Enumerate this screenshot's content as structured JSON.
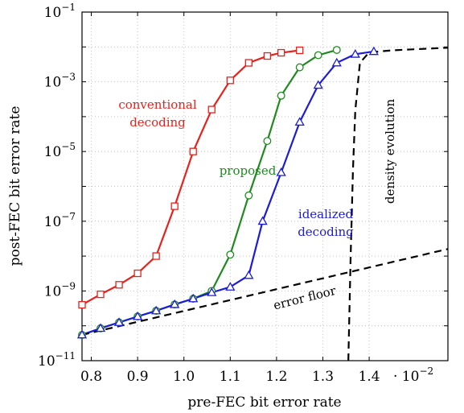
{
  "chart_data": {
    "type": "line",
    "xlabel": "pre-FEC bit error rate",
    "ylabel": "post-FEC bit error rate",
    "x_multiplier_label": "· 10",
    "x_multiplier_exp": "−2",
    "xlim": [
      0.78,
      1.57
    ],
    "ylim": [
      1e-11,
      0.1
    ],
    "yscale": "log",
    "grid": true,
    "x_ticks": [
      "0.8",
      "0.9",
      "1.0",
      "1.1",
      "1.2",
      "1.3",
      "1.4"
    ],
    "x_tick_values": [
      0.8,
      0.9,
      1.0,
      1.1,
      1.2,
      1.3,
      1.4
    ],
    "y_ticks": [
      {
        "value": 1e-11,
        "base": "10",
        "exp": "−11"
      },
      {
        "value": 1e-09,
        "base": "10",
        "exp": "−9"
      },
      {
        "value": 1e-07,
        "base": "10",
        "exp": "−7"
      },
      {
        "value": 1e-05,
        "base": "10",
        "exp": "−5"
      },
      {
        "value": 0.001,
        "base": "10",
        "exp": "−3"
      },
      {
        "value": 0.1,
        "base": "10",
        "exp": "−1"
      }
    ],
    "series": [
      {
        "color": "#e8211c",
        "marker": "square",
        "x": [
          0.78,
          0.82,
          0.86,
          0.9,
          0.94,
          0.98,
          1.02,
          1.06,
          1.1,
          1.14,
          1.18,
          1.21,
          1.25
        ],
        "y": [
          4e-10,
          8e-10,
          1.5e-09,
          3.2e-09,
          1e-08,
          2.7e-07,
          1e-05,
          0.00016,
          0.0011,
          0.0035,
          0.0055,
          0.0068,
          0.008
        ]
      },
      {
        "color": "#1f8a1f",
        "marker": "circle",
        "x": [
          0.78,
          0.82,
          0.86,
          0.9,
          0.94,
          0.98,
          1.02,
          1.06,
          1.1,
          1.14,
          1.18,
          1.21,
          1.25,
          1.29,
          1.33
        ],
        "y": [
          5.5e-11,
          8.5e-11,
          1.25e-10,
          1.85e-10,
          2.7e-10,
          4.1e-10,
          6e-10,
          1e-09,
          1.1e-08,
          5.5e-07,
          2e-05,
          0.0004,
          0.0026,
          0.0058,
          0.0082
        ]
      },
      {
        "color": "#1c1cd8",
        "marker": "triangle",
        "x": [
          0.78,
          0.82,
          0.86,
          0.9,
          0.94,
          0.98,
          1.02,
          1.06,
          1.1,
          1.14,
          1.17,
          1.21,
          1.25,
          1.29,
          1.33,
          1.37,
          1.41
        ],
        "y": [
          5.5e-11,
          8.5e-11,
          1.25e-10,
          1.85e-10,
          2.7e-10,
          4.1e-10,
          6e-10,
          9e-10,
          1.3e-09,
          2.8e-09,
          1e-07,
          2.5e-06,
          7e-05,
          0.0008,
          0.0035,
          0.0062,
          0.0074
        ]
      },
      {
        "color": "#000000",
        "marker": "none",
        "dashed": true,
        "x": [
          0.78,
          1.57
        ],
        "y": [
          5.5e-11,
          1.6e-08
        ]
      },
      {
        "color": "#000000",
        "marker": "none",
        "dashed": true,
        "x": [
          1.355,
          1.36,
          1.365,
          1.37,
          1.38,
          1.4,
          1.45,
          1.5,
          1.57
        ],
        "y": [
          1e-11,
          1e-08,
          3e-06,
          0.00015,
          0.0035,
          0.007,
          0.008,
          0.0086,
          0.0095
        ]
      }
    ],
    "annotations": [
      {
        "text": "conventional",
        "color": "#e8211c"
      },
      {
        "text": "decoding",
        "color": "#e8211c"
      },
      {
        "text": "proposed",
        "color": "#1f8a1f"
      },
      {
        "text": "idealized",
        "color": "#1c1cd8"
      },
      {
        "text": "decoding",
        "color": "#1c1cd8"
      },
      {
        "text": "error floor",
        "color": "#000000"
      },
      {
        "text": "density evolution",
        "color": "#000000"
      }
    ]
  }
}
